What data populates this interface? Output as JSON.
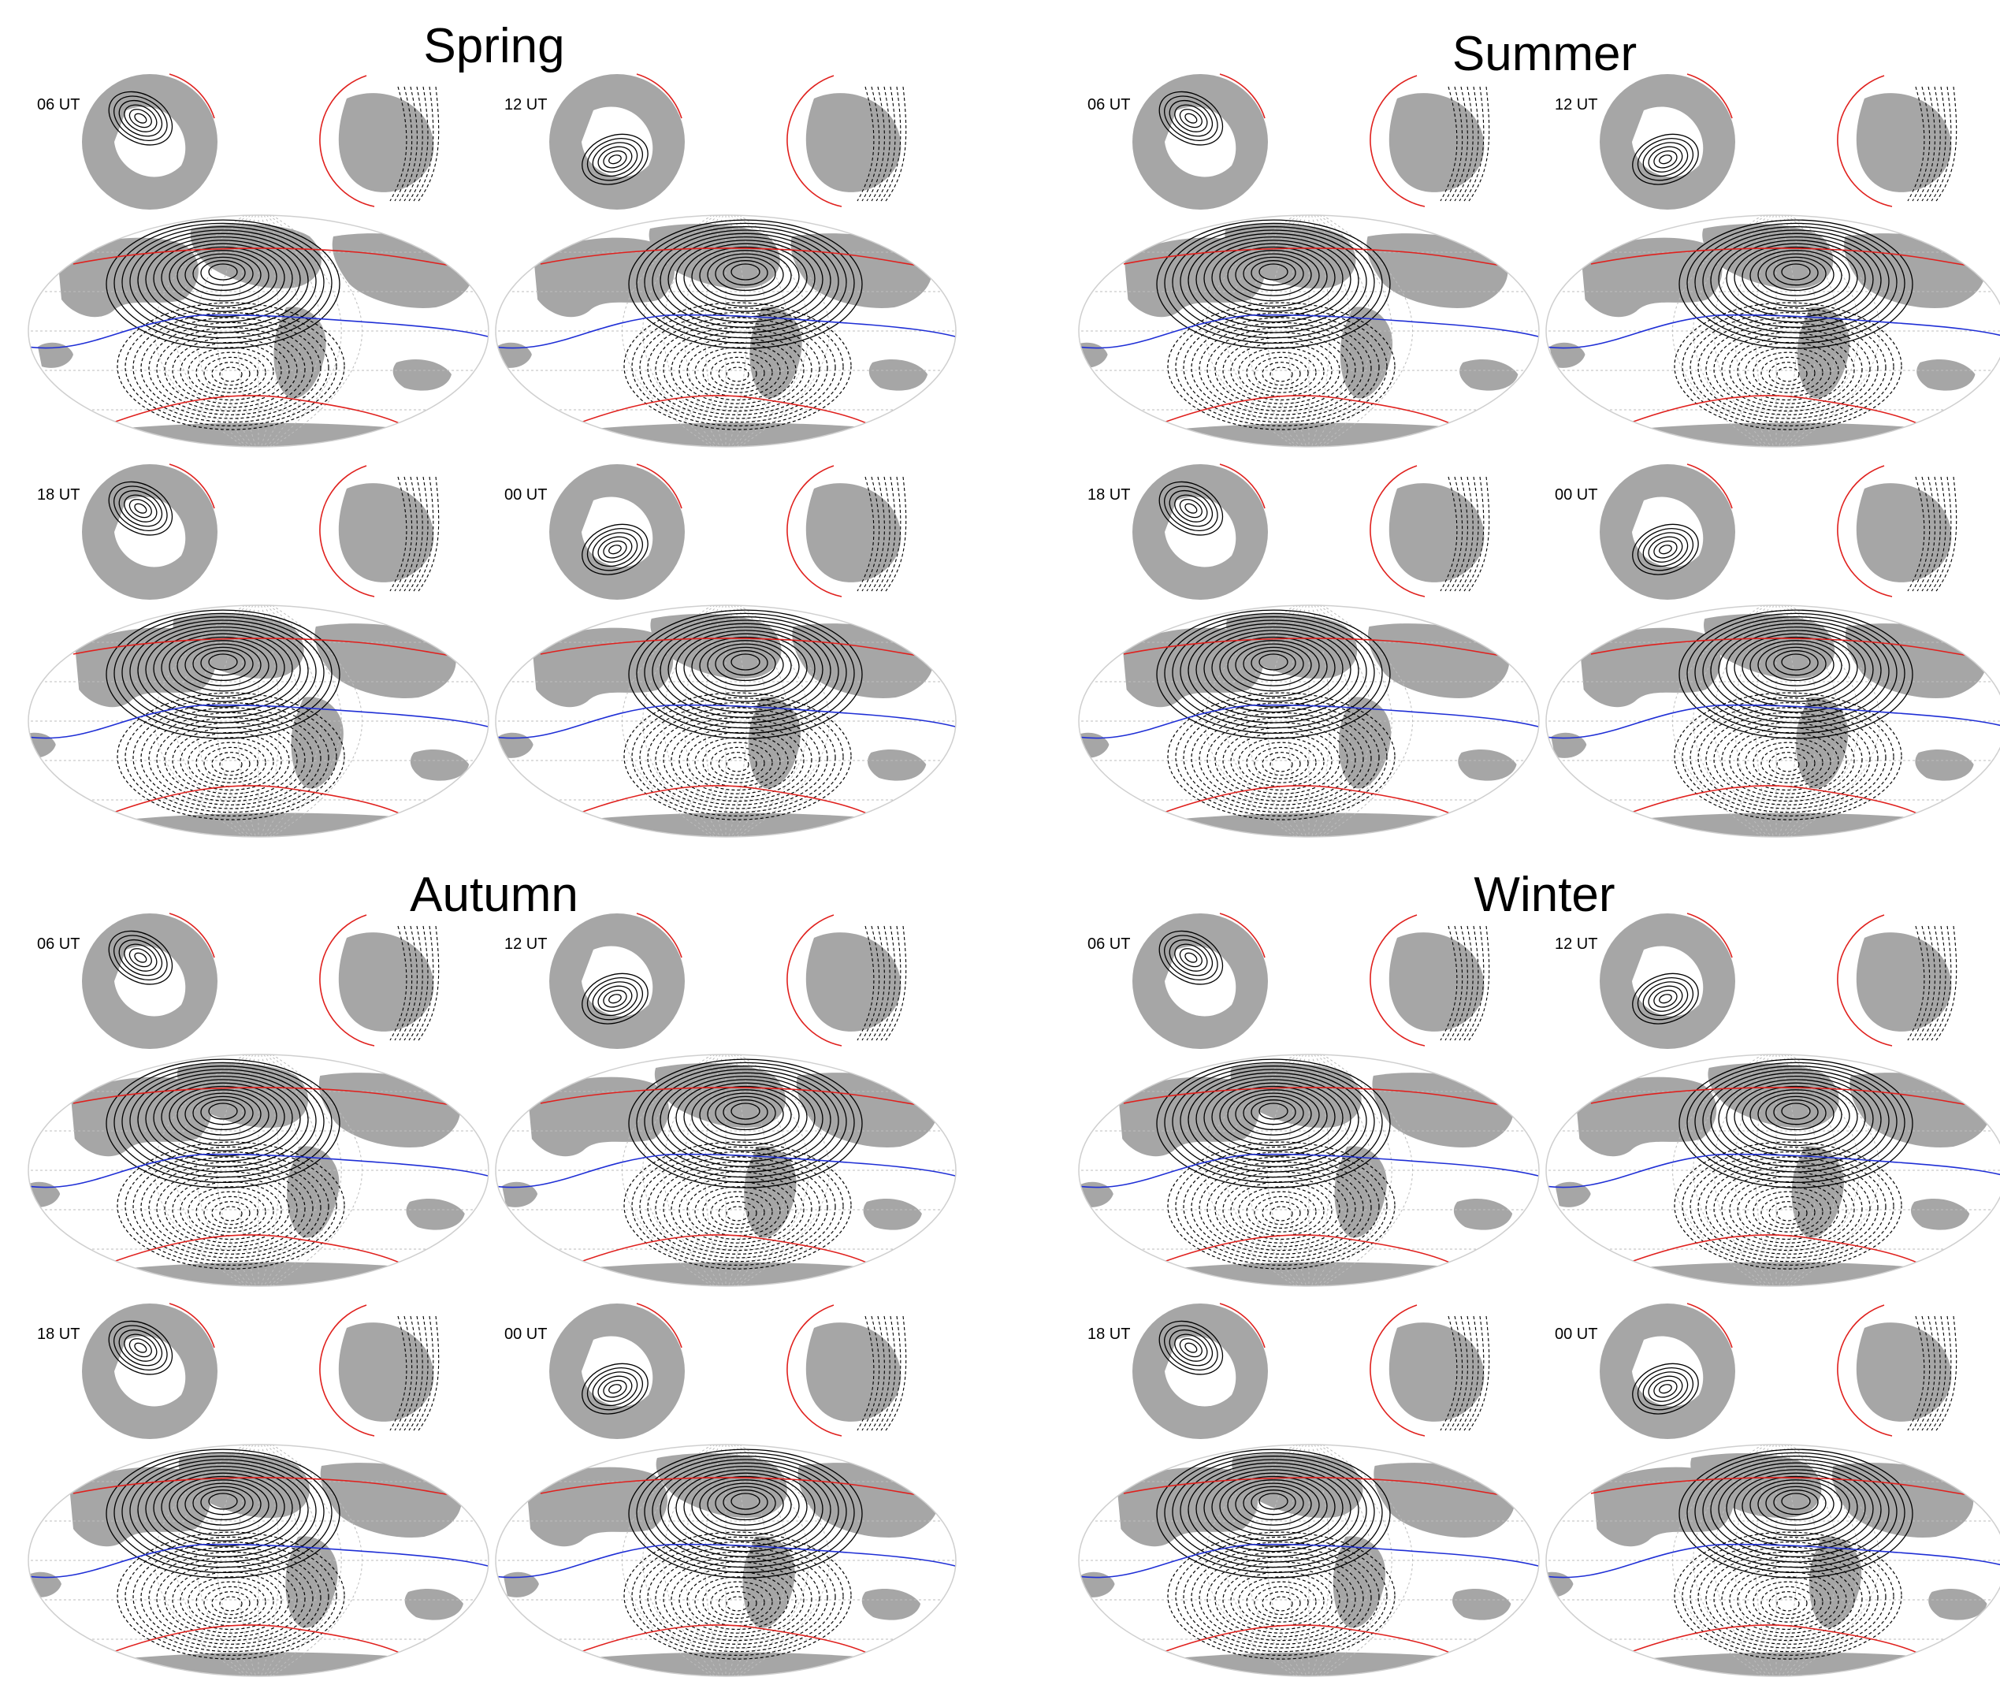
{
  "seasons": [
    {
      "title": "Spring",
      "times": [
        "06 UT",
        "12 UT",
        "18 UT",
        "00 UT"
      ]
    },
    {
      "title": "Summer",
      "times": [
        "06 UT",
        "12 UT",
        "18 UT",
        "00 UT"
      ]
    },
    {
      "title": "Autumn",
      "times": [
        "06 UT",
        "12 UT",
        "18 UT",
        "00 UT"
      ]
    },
    {
      "title": "Winter",
      "times": [
        "06 UT",
        "12 UT",
        "18 UT",
        "00 UT"
      ]
    }
  ],
  "colors": {
    "land": "#a6a6a6",
    "contour": "#000000",
    "dip_equator": "#1f2fd6",
    "auroral_boundary": "#e0201d",
    "graticule": "#bdbdbd"
  }
}
